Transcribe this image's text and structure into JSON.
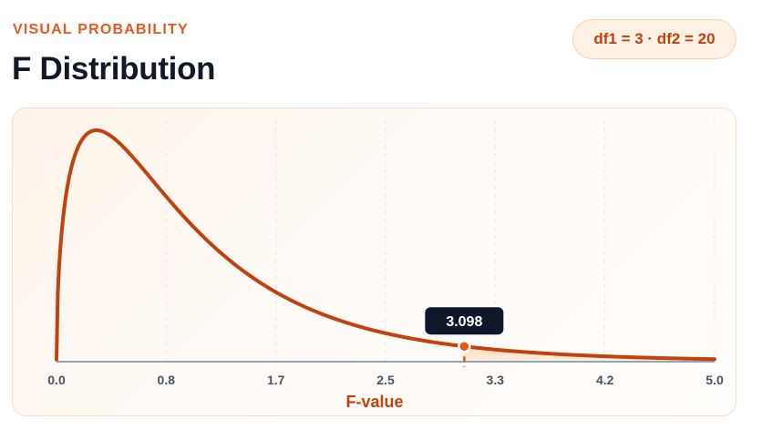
{
  "header": {
    "eyebrow": "VISUAL PROBABILITY",
    "title": "F Distribution",
    "badge": "df1 = 3 · df2 = 20"
  },
  "colors": {
    "accent": "#e8571e",
    "curve": "#c2410c",
    "title": "#111827",
    "tooltip_bg": "#0f172a",
    "axis": "#94a3b8"
  },
  "chart_data": {
    "type": "line",
    "distribution": "F",
    "df1": 3,
    "df2": 20,
    "xlabel": "F-value",
    "xlim": [
      0,
      5
    ],
    "x_ticks": [
      "0.0",
      "0.8",
      "1.7",
      "2.5",
      "3.3",
      "4.2",
      "5.0"
    ],
    "x_tick_values": [
      0.0,
      0.833,
      1.667,
      2.5,
      3.333,
      4.167,
      5.0
    ],
    "grid": "vertical dashed",
    "critical_value": 3.098,
    "critical_label": "3.098",
    "shaded_region": "right tail from 3.098 to 5.0"
  }
}
